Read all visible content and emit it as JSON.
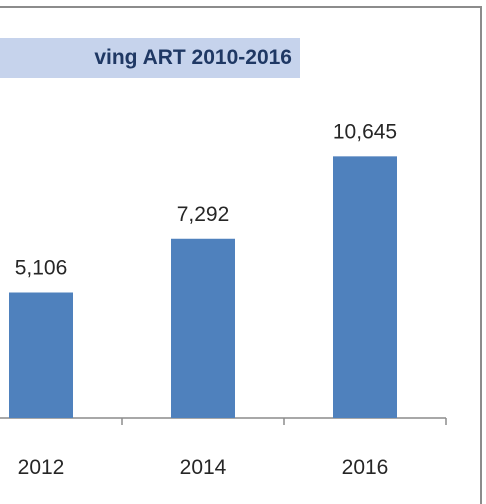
{
  "chart_data": {
    "type": "bar",
    "title": "ving ART 2010-2016",
    "categories": [
      "2012",
      "2014",
      "2016"
    ],
    "values": [
      5106,
      7292,
      10645
    ],
    "data_labels": [
      "5,106",
      "7,292",
      "10,645"
    ],
    "xlabel": "",
    "ylabel": "",
    "grid": false,
    "legend": "none",
    "colors": {
      "bar": "#4f81bd",
      "title_bg": "#c6d3ec",
      "title_text": "#1f3864"
    }
  }
}
